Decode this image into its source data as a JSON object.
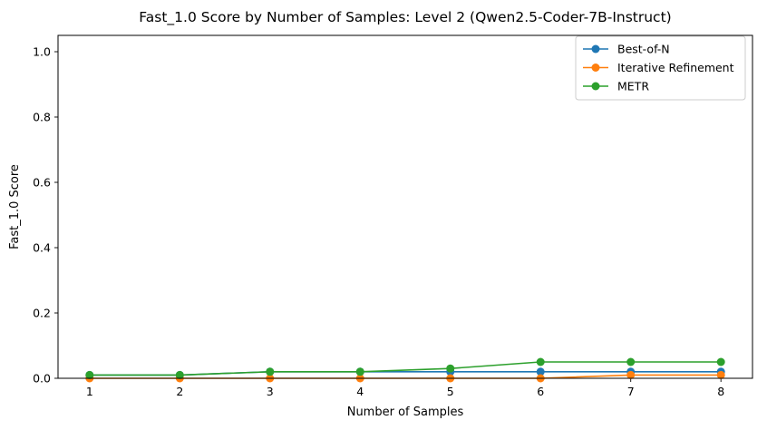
{
  "chart_data": {
    "type": "line",
    "title": "Fast_1.0 Score by Number of Samples: Level 2 (Qwen2.5-Coder-7B-Instruct)",
    "xlabel": "Number of Samples",
    "ylabel": "Fast_1.0 Score",
    "x": [
      1,
      2,
      3,
      4,
      5,
      6,
      7,
      8
    ],
    "xlim": [
      0.65,
      8.35
    ],
    "ylim": [
      0,
      1.05
    ],
    "xticks": [
      "1",
      "2",
      "3",
      "4",
      "5",
      "6",
      "7",
      "8"
    ],
    "yticks": [
      "0.0",
      "0.2",
      "0.4",
      "0.6",
      "0.8",
      "1.0"
    ],
    "grid": false,
    "legend_position": "top-right",
    "series": [
      {
        "name": "Best-of-N",
        "color": "#1f77b4",
        "marker": "circle",
        "values": [
          0.01,
          0.01,
          0.02,
          0.02,
          0.02,
          0.02,
          0.02,
          0.02
        ]
      },
      {
        "name": "Iterative Refinement",
        "color": "#ff7f0e",
        "marker": "circle",
        "values": [
          0.0,
          0.0,
          0.0,
          0.0,
          0.0,
          0.0,
          0.01,
          0.01
        ]
      },
      {
        "name": "METR",
        "color": "#2ca02c",
        "marker": "circle",
        "values": [
          0.01,
          0.01,
          0.02,
          0.02,
          0.03,
          0.05,
          0.05,
          0.05
        ]
      }
    ]
  }
}
